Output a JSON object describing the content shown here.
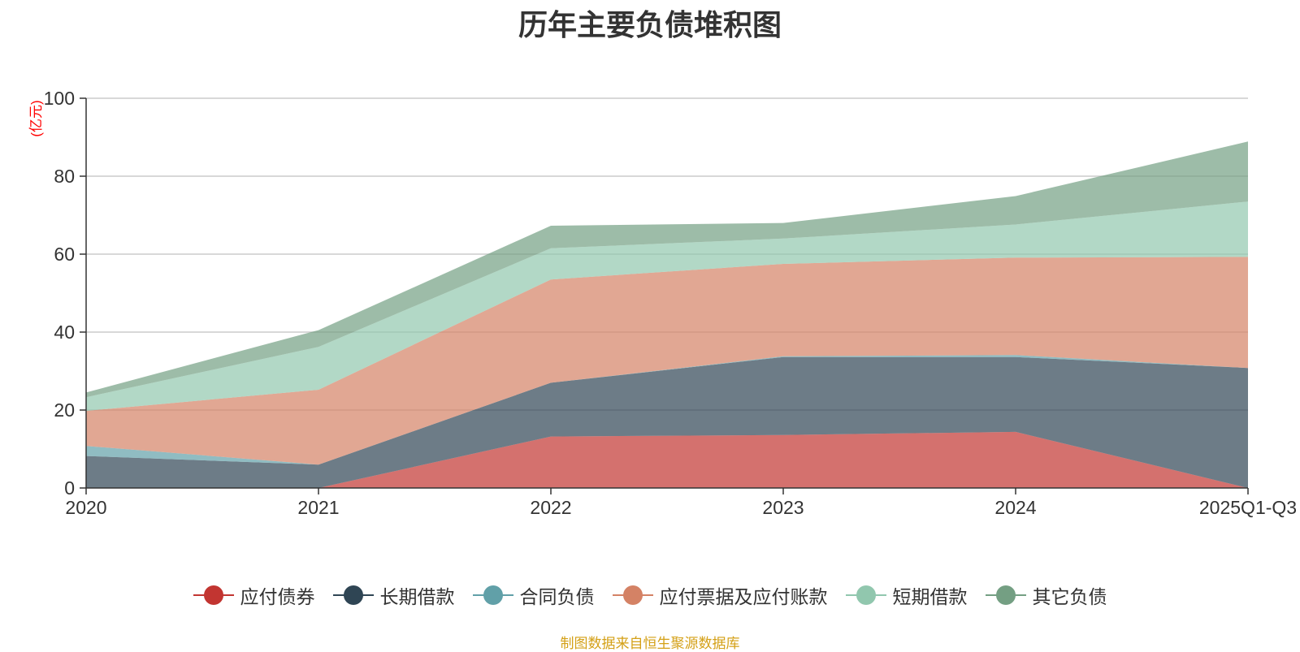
{
  "chart_data": {
    "type": "area",
    "stacked": true,
    "title": "历年主要负债堆积图",
    "ylabel": "(亿元)",
    "xlabel": "",
    "ylim": [
      0,
      100
    ],
    "yticks": [
      0,
      20,
      40,
      60,
      80,
      100
    ],
    "grid": true,
    "legend_position": "bottom",
    "categories": [
      "2020",
      "2021",
      "2022",
      "2023",
      "2024",
      "2025Q1-Q3"
    ],
    "series": [
      {
        "name": "应付债券",
        "color": "#c23531",
        "values": [
          0,
          0,
          13.2,
          13.6,
          14.4,
          0
        ]
      },
      {
        "name": "长期借款",
        "color": "#2f4554",
        "values": [
          8.2,
          6.0,
          13.8,
          20.0,
          19.2,
          30.8
        ]
      },
      {
        "name": "合同负债",
        "color": "#61a0a8",
        "values": [
          2.6,
          0,
          0,
          0.2,
          0.5,
          0
        ]
      },
      {
        "name": "应付票据及应付账款",
        "color": "#d48265",
        "values": [
          9.0,
          19.2,
          26.5,
          23.7,
          25.0,
          28.5
        ]
      },
      {
        "name": "短期借款",
        "color": "#91c7ae",
        "values": [
          3.5,
          11.0,
          8.0,
          6.5,
          8.5,
          14.2
        ]
      },
      {
        "name": "其它负债",
        "color": "#749f83",
        "values": [
          1.2,
          4.3,
          5.8,
          4.0,
          7.3,
          15.4
        ]
      }
    ]
  },
  "source_note": "制图数据来自恒生聚源数据库"
}
